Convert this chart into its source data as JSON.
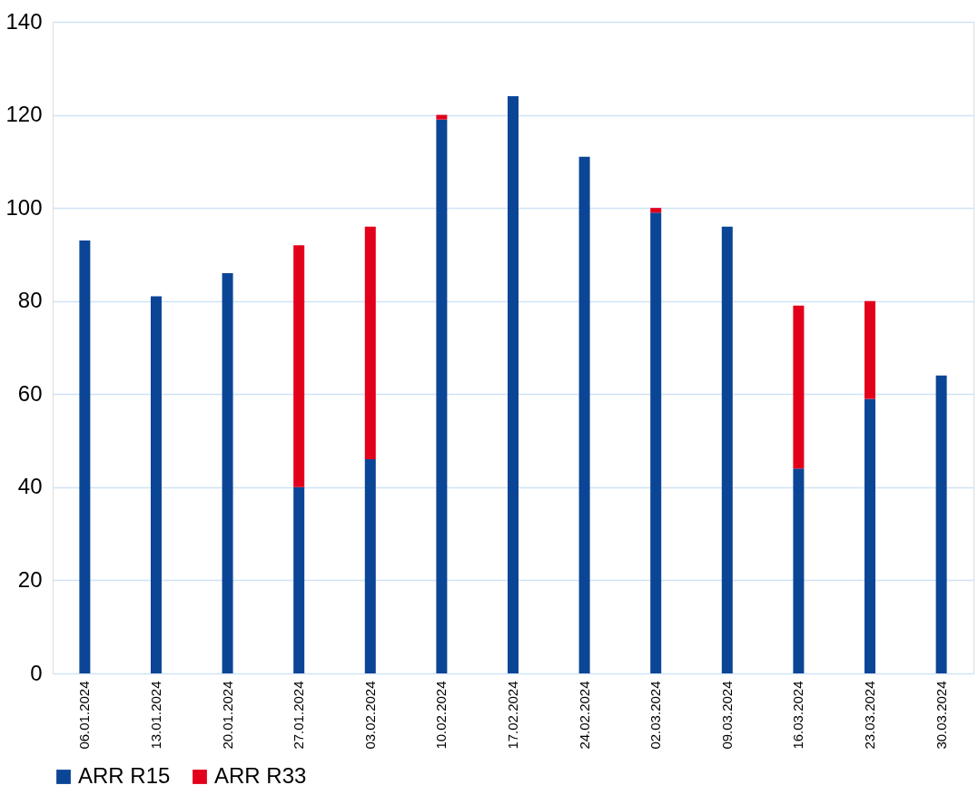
{
  "chart_data": {
    "type": "bar",
    "stacked": true,
    "categories": [
      "06.01.2024",
      "13.01.2024",
      "20.01.2024",
      "27.01.2024",
      "03.02.2024",
      "10.02.2024",
      "17.02.2024",
      "24.02.2024",
      "02.03.2024",
      "09.03.2024",
      "16.03.2024",
      "23.03.2024",
      "30.03.2024"
    ],
    "series": [
      {
        "name": "ARR R15",
        "color": "#0b4596",
        "values": [
          93,
          81,
          86,
          40,
          46,
          119,
          124,
          111,
          99,
          96,
          44,
          59,
          64
        ]
      },
      {
        "name": "ARR R33",
        "color": "#e3001b",
        "values": [
          null,
          null,
          null,
          52,
          50,
          1,
          null,
          null,
          1,
          null,
          35,
          21,
          null
        ]
      }
    ],
    "ylim": [
      0,
      140
    ],
    "yticks": [
      0,
      20,
      40,
      60,
      80,
      100,
      120,
      140
    ],
    "grid": "y",
    "legend": "bottom"
  }
}
